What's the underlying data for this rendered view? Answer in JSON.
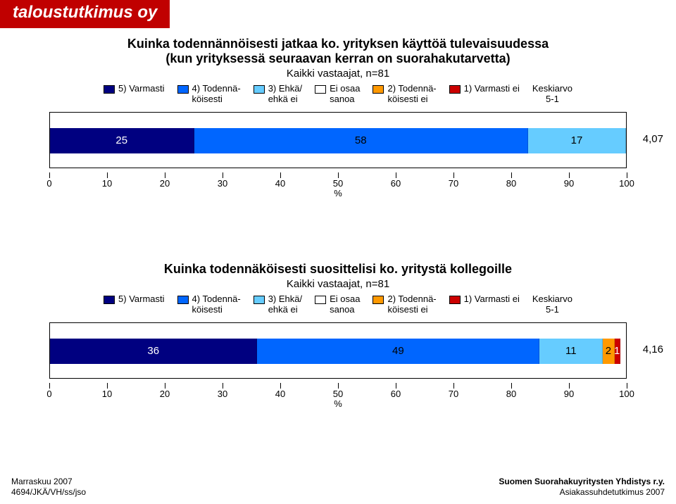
{
  "brand": "taloustutkimus oy",
  "legend_items": [
    {
      "label": "5) Varmasti",
      "color": "#000080"
    },
    {
      "label": "4) Todennä-\nköisesti",
      "color": "#0066ff"
    },
    {
      "label": "3) Ehkä/\nehkä ei",
      "color": "#66ccff"
    },
    {
      "label": "Ei osaa\nsanoa",
      "color": "#ffffff"
    },
    {
      "label": "2) Todennä-\nköisesti ei",
      "color": "#ff9900"
    },
    {
      "label": "1) Varmasti ei",
      "color": "#cc0000"
    }
  ],
  "legend_extra": "Keskiarvo\n5-1",
  "axis": {
    "min": 0,
    "max": 100,
    "step": 10,
    "unit": "%"
  },
  "chart1": {
    "title": "Kuinka todennännöisesti jatkaa ko. yrityksen käyttöä tulevaisuudessa\n(kun yrityksessä seuraavan kerran on suorahakutarvetta)",
    "subtitle": "Kaikki vastaajat, n=81",
    "segments": [
      {
        "value": 25,
        "color": "#000080",
        "text_color": "#ffffff"
      },
      {
        "value": 58,
        "color": "#0066ff",
        "text_color": "#000000"
      },
      {
        "value": 17,
        "color": "#66ccff",
        "text_color": "#000000"
      }
    ],
    "avg": "4,07"
  },
  "chart2": {
    "title": "Kuinka todennäköisesti suosittelisi ko. yritystä kollegoille",
    "subtitle": "Kaikki vastaajat, n=81",
    "segments": [
      {
        "value": 36,
        "color": "#000080",
        "text_color": "#ffffff"
      },
      {
        "value": 49,
        "color": "#0066ff",
        "text_color": "#000000"
      },
      {
        "value": 11,
        "color": "#66ccff",
        "text_color": "#000000"
      },
      {
        "value": 2,
        "color": "#ff9900",
        "text_color": "#000000"
      },
      {
        "value": 1,
        "color": "#cc0000",
        "text_color": "#ffffff"
      }
    ],
    "avg": "4,16"
  },
  "footer": {
    "left1": "Marraskuu 2007",
    "left2": "4694/JKÄ/VH/ss/jso",
    "right1": "Suomen Suorahakuyritysten Yhdistys r.y.",
    "right2": "Asiakassuhdetutkimus 2007"
  }
}
